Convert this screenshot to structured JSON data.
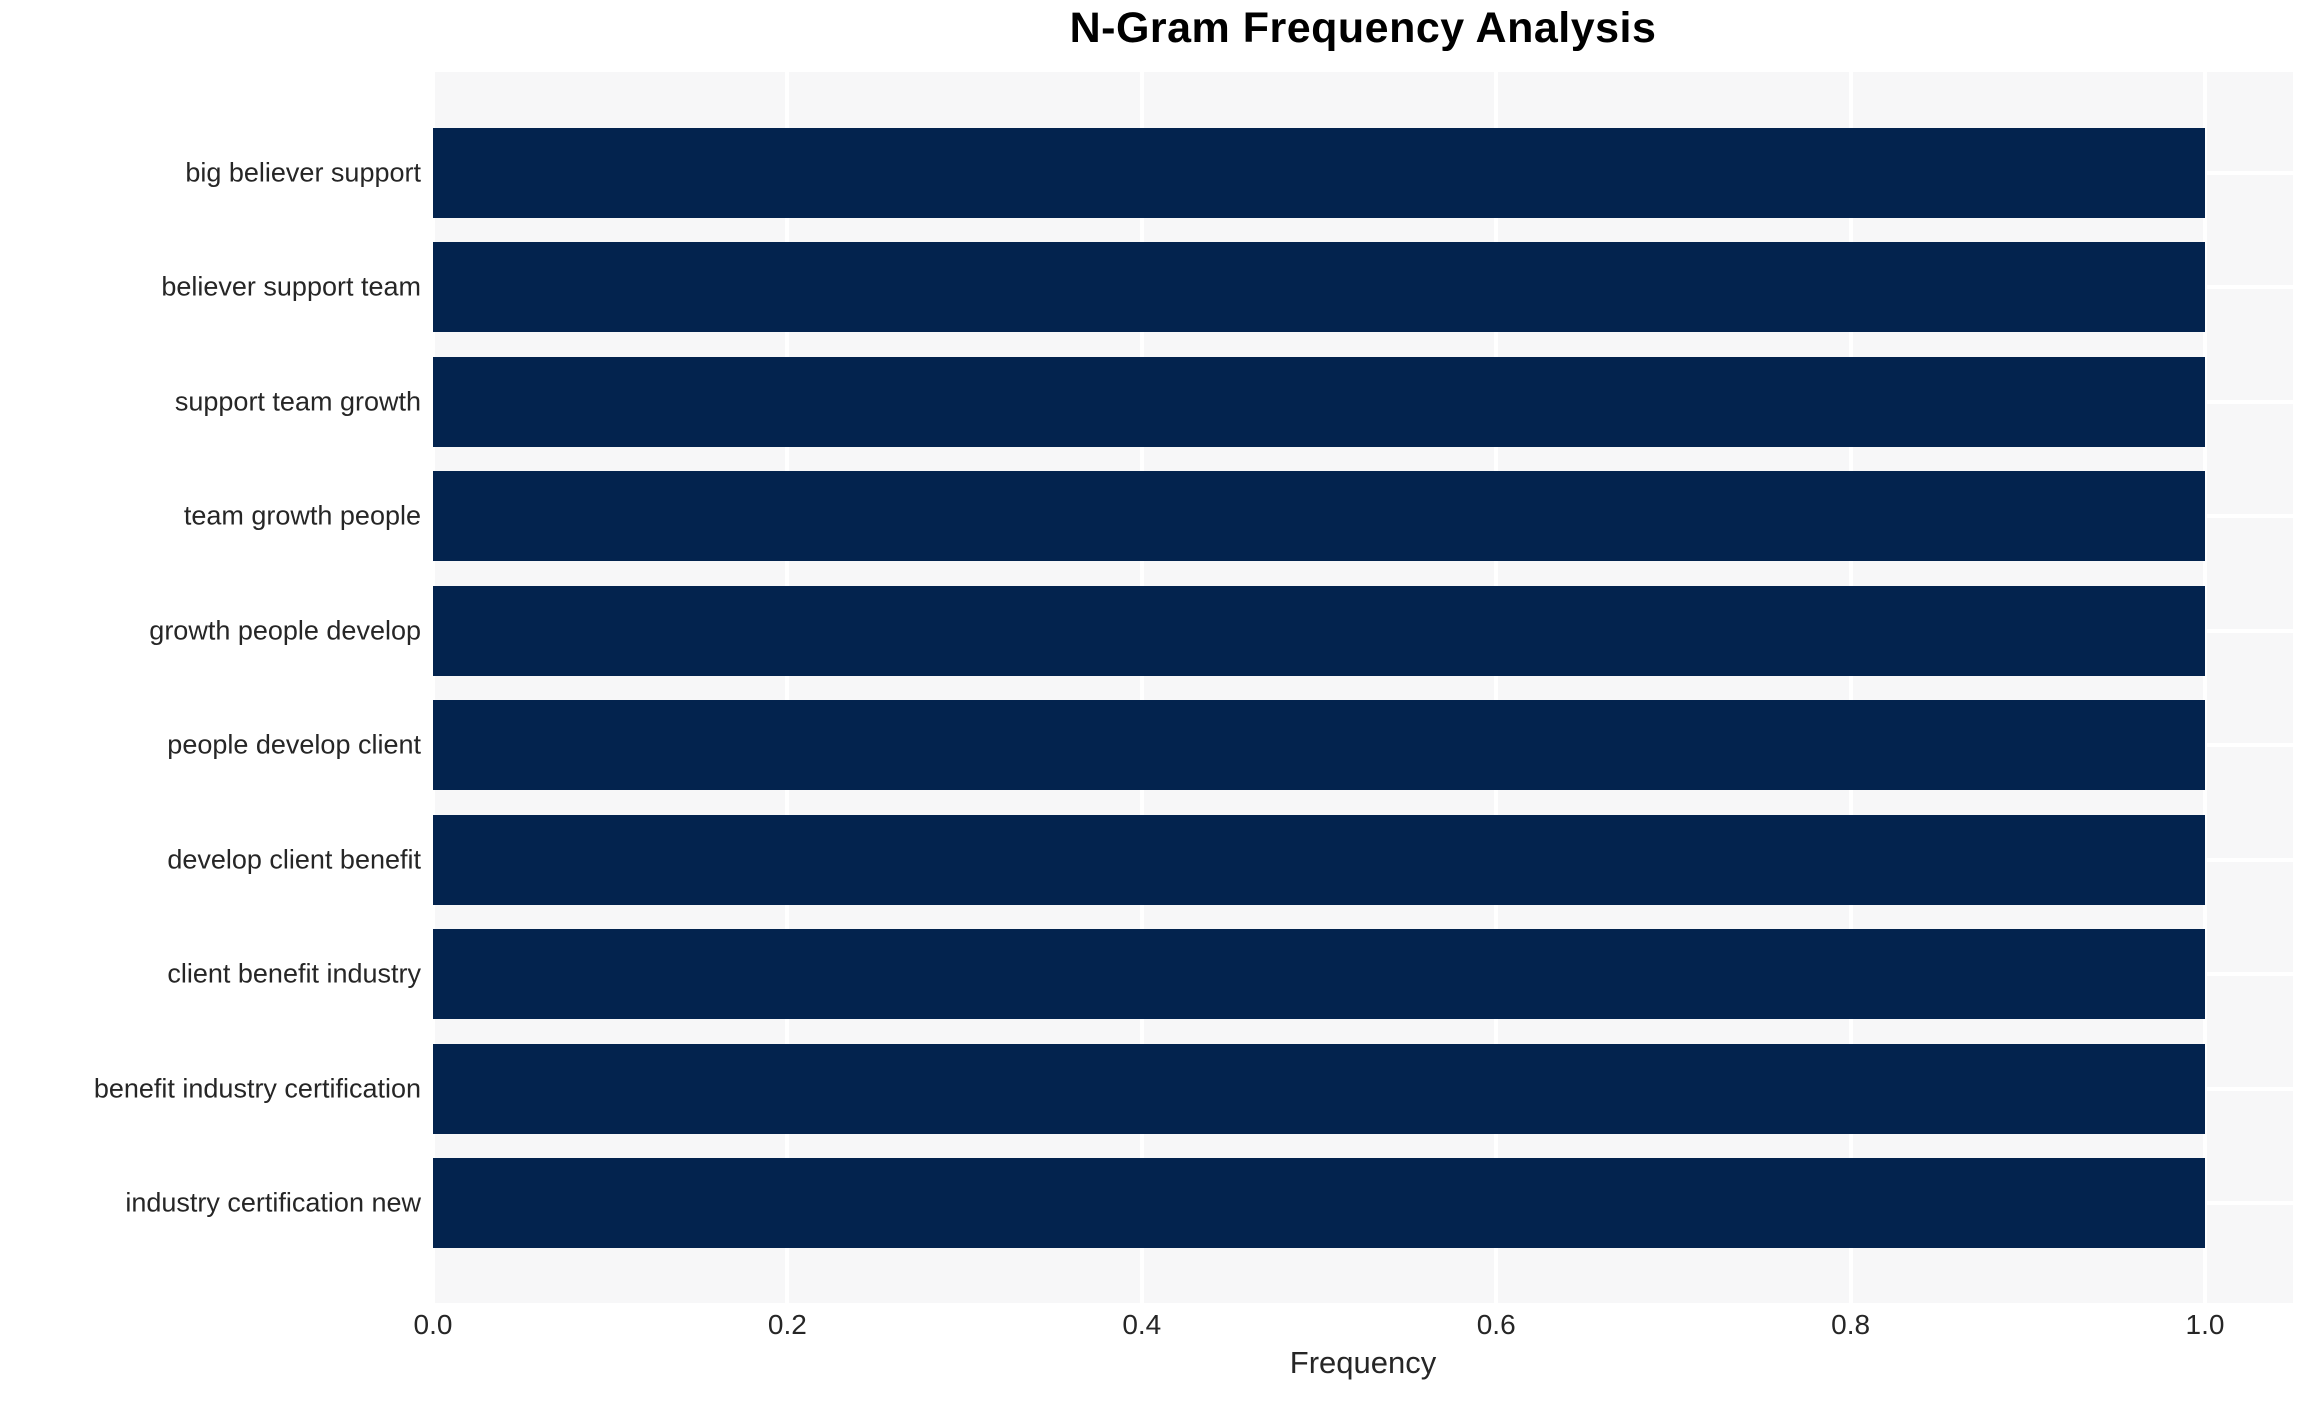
{
  "chart_data": {
    "type": "bar",
    "orientation": "horizontal",
    "title": "N-Gram Frequency Analysis",
    "xlabel": "Frequency",
    "ylabel": "",
    "categories": [
      "big believer support",
      "believer support team",
      "support team growth",
      "team growth people",
      "growth people develop",
      "people develop client",
      "develop client benefit",
      "client benefit industry",
      "benefit industry certification",
      "industry certification new"
    ],
    "values": [
      1.0,
      1.0,
      1.0,
      1.0,
      1.0,
      1.0,
      1.0,
      1.0,
      1.0,
      1.0
    ],
    "xlim": [
      0.0,
      1.0
    ],
    "xticks": [
      "0.0",
      "0.2",
      "0.4",
      "0.6",
      "0.8",
      "1.0"
    ],
    "grid": true,
    "legend": false,
    "colors": {
      "bar": "#03234e",
      "plot_background": "#f7f7f8",
      "gridline": "#ffffff",
      "tick_text": "#262626",
      "title_text": "#000000"
    }
  }
}
